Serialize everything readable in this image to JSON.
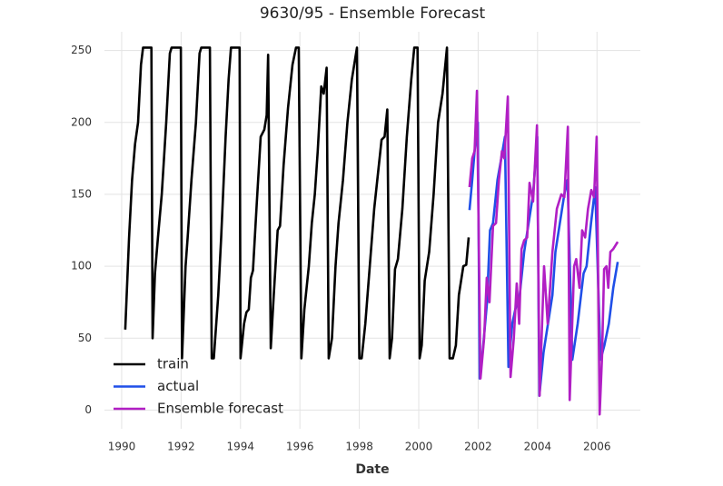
{
  "chart_data": {
    "type": "line",
    "title": "9630/95 - Ensemble Forecast",
    "x_label": "Date",
    "xlim": [
      1989.42,
      2007.46
    ],
    "ylim": [
      -13,
      263
    ],
    "xticks": [
      1990,
      1992,
      1994,
      1996,
      1998,
      2000,
      2002,
      2004,
      2006
    ],
    "yticks": [
      0,
      50,
      100,
      150,
      200,
      250
    ],
    "grid": true,
    "legend": "lower left",
    "series": [
      {
        "name": "train",
        "color": "#000000",
        "x": [
          1990.12,
          1990.25,
          1990.35,
          1990.45,
          1990.55,
          1990.65,
          1990.72,
          1991.0,
          1991.04,
          1991.12,
          1991.22,
          1991.35,
          1991.5,
          1991.62,
          1991.68,
          1991.99,
          1992.03,
          1992.15,
          1992.22,
          1992.35,
          1992.5,
          1992.62,
          1992.68,
          1992.97,
          1993.03,
          1993.1,
          1993.25,
          1993.35,
          1993.5,
          1993.6,
          1993.68,
          1993.97,
          1994.0,
          1994.12,
          1994.2,
          1994.28,
          1994.35,
          1994.42,
          1994.55,
          1994.68,
          1994.8,
          1994.88,
          1994.93,
          1995.02,
          1995.12,
          1995.25,
          1995.33,
          1995.45,
          1995.6,
          1995.75,
          1995.87,
          1995.96,
          1996.05,
          1996.15,
          1996.3,
          1996.4,
          1996.5,
          1996.6,
          1996.72,
          1996.8,
          1996.9,
          1996.97,
          1997.08,
          1997.2,
          1997.3,
          1997.45,
          1997.6,
          1997.75,
          1997.92,
          1998.0,
          1998.08,
          1998.2,
          1998.35,
          1998.5,
          1998.75,
          1998.85,
          1998.94,
          1999.02,
          1999.1,
          1999.2,
          1999.3,
          1999.45,
          1999.6,
          1999.75,
          1999.85,
          1999.96,
          2000.03,
          2000.1,
          2000.2,
          2000.35,
          2000.5,
          2000.65,
          2000.8,
          2000.95,
          2001.04,
          2001.15,
          2001.25,
          2001.35,
          2001.5,
          2001.6,
          2001.68
        ],
        "values": [
          56,
          120,
          160,
          185,
          200,
          240,
          252,
          252,
          50,
          95,
          120,
          150,
          200,
          248,
          252,
          252,
          36,
          100,
          120,
          160,
          200,
          248,
          252,
          252,
          36,
          36,
          80,
          120,
          190,
          230,
          252,
          252,
          36,
          60,
          68,
          70,
          92,
          97,
          145,
          190,
          195,
          205,
          247,
          43,
          80,
          125,
          128,
          170,
          210,
          240,
          252,
          252,
          36,
          70,
          100,
          130,
          150,
          180,
          225,
          220,
          238,
          36,
          50,
          100,
          130,
          160,
          200,
          230,
          252,
          36,
          36,
          60,
          100,
          140,
          188,
          190,
          209,
          36,
          50,
          98,
          105,
          140,
          190,
          230,
          252,
          252,
          36,
          45,
          90,
          110,
          150,
          200,
          220,
          252,
          36,
          36,
          45,
          80,
          100,
          101,
          120
        ]
      },
      {
        "name": "actual",
        "color": "#1f4fe8",
        "x": [
          2001.71,
          2001.8,
          2001.88,
          2001.99,
          2002.05,
          2002.15,
          2002.3,
          2002.4,
          2002.5,
          2002.65,
          2002.78,
          2002.9,
          2003.02,
          2003.15,
          2003.25,
          2003.4,
          2003.55,
          2003.7,
          2003.85,
          2003.99,
          2004.06,
          2004.2,
          2004.35,
          2004.5,
          2004.6,
          2004.75,
          2004.9,
          2005.01,
          2005.17,
          2005.35,
          2005.55,
          2005.65,
          2005.8,
          2005.94,
          2006.12,
          2006.25,
          2006.4,
          2006.55,
          2006.7
        ],
        "values": [
          139,
          160,
          180,
          200,
          22,
          40,
          75,
          125,
          130,
          160,
          175,
          190,
          30,
          60,
          70,
          80,
          110,
          130,
          150,
          190,
          10,
          40,
          60,
          80,
          110,
          130,
          150,
          160,
          35,
          60,
          95,
          100,
          130,
          155,
          35,
          45,
          60,
          85,
          103
        ]
      },
      {
        "name": "Ensemble forecast",
        "color": "#b11fc4",
        "x": [
          2001.71,
          2001.8,
          2001.88,
          2001.96,
          2002.08,
          2002.2,
          2002.29,
          2002.38,
          2002.5,
          2002.6,
          2002.7,
          2002.8,
          2002.88,
          2003.0,
          2003.09,
          2003.2,
          2003.3,
          2003.38,
          2003.46,
          2003.55,
          2003.65,
          2003.73,
          2003.85,
          2003.98,
          2004.07,
          2004.22,
          2004.34,
          2004.5,
          2004.65,
          2004.8,
          2004.9,
          2005.02,
          2005.08,
          2005.23,
          2005.3,
          2005.41,
          2005.5,
          2005.6,
          2005.7,
          2005.81,
          2005.9,
          2005.99,
          2006.09,
          2006.17,
          2006.24,
          2006.32,
          2006.38,
          2006.45,
          2006.55,
          2006.7
        ],
        "values": [
          155,
          175,
          180,
          222,
          22,
          50,
          92,
          75,
          128,
          130,
          160,
          180,
          175,
          218,
          23,
          50,
          88,
          60,
          112,
          118,
          120,
          158,
          145,
          198,
          10,
          100,
          60,
          110,
          140,
          150,
          148,
          197,
          7,
          100,
          105,
          85,
          125,
          120,
          140,
          153,
          148,
          190,
          -3,
          37,
          98,
          100,
          85,
          110,
          112,
          117
        ]
      }
    ]
  }
}
